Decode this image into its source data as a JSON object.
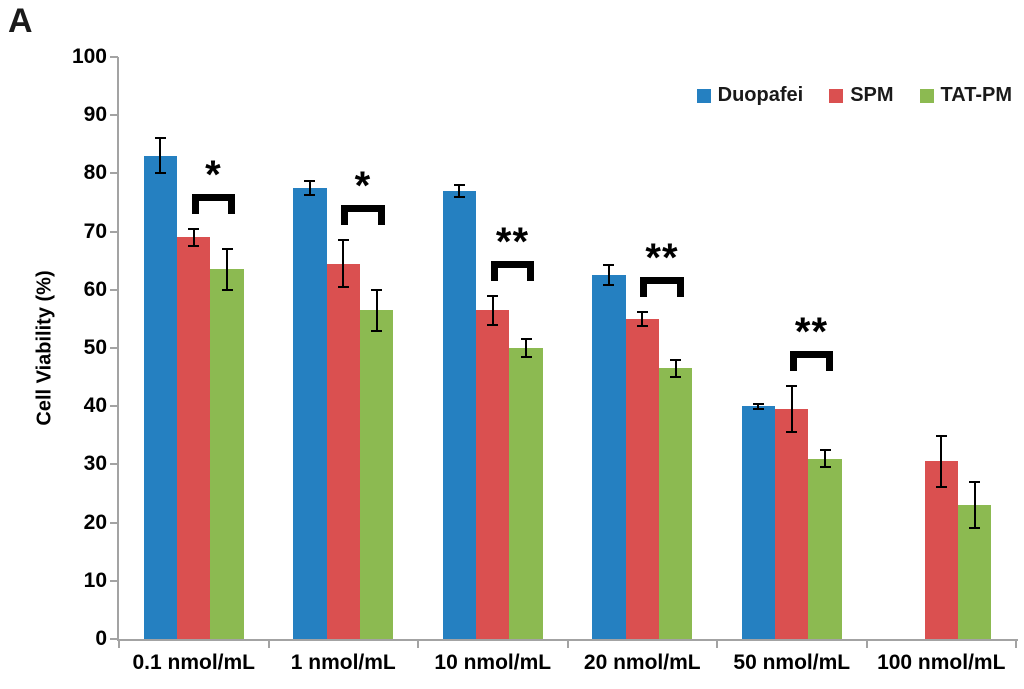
{
  "panel_label": "A",
  "chart_data": {
    "type": "bar",
    "title": "",
    "xlabel": "",
    "ylabel": "Cell Viability (%)",
    "ylim": [
      0,
      100
    ],
    "ytick_step": 10,
    "yticks": [
      0,
      10,
      20,
      30,
      40,
      50,
      60,
      70,
      80,
      90,
      100
    ],
    "grid": false,
    "legend_position": "top-right",
    "categories": [
      "0.1 nmol/mL",
      "1 nmol/mL",
      "10 nmol/mL",
      "20 nmol/mL",
      "50 nmol/mL",
      "100 nmol/mL"
    ],
    "series": [
      {
        "name": "Duopafei",
        "color": "#2580C1",
        "values": [
          83,
          77.5,
          77,
          62.5,
          40,
          null
        ],
        "errors": [
          3,
          1.2,
          1,
          1.7,
          0.4,
          null
        ]
      },
      {
        "name": "SPM",
        "color": "#DA5050",
        "values": [
          69,
          64.5,
          56.5,
          55,
          39.5,
          30.5
        ],
        "errors": [
          1.5,
          4,
          2.5,
          1.2,
          4,
          4.3
        ]
      },
      {
        "name": "TAT-PM",
        "color": "#8CBA51",
        "values": [
          63.5,
          56.5,
          50,
          46.5,
          31,
          23
        ],
        "errors": [
          3.5,
          3.5,
          1.5,
          1.5,
          1.4,
          4
        ]
      }
    ],
    "significance": [
      {
        "group": 0,
        "label": "*"
      },
      {
        "group": 1,
        "label": "*"
      },
      {
        "group": 2,
        "label": "**"
      },
      {
        "group": 3,
        "label": "**"
      },
      {
        "group": 4,
        "label": "**"
      }
    ],
    "significance_between": [
      "SPM",
      "TAT-PM"
    ]
  }
}
